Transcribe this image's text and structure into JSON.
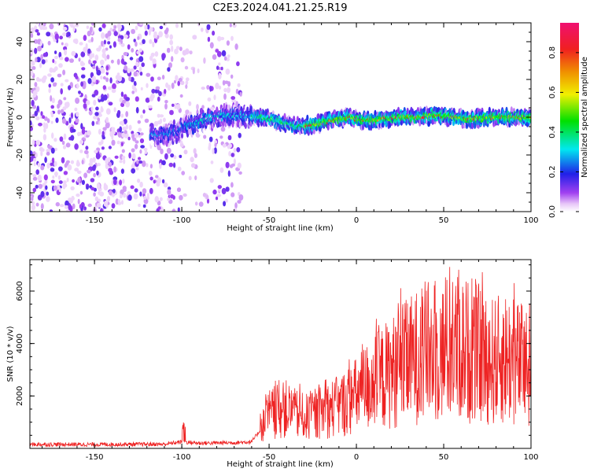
{
  "figure": {
    "title": "C2E3.2024.041.21.25.R19"
  },
  "chart_data": [
    {
      "type": "heatmap",
      "xlabel": "Height of straight line (km)",
      "ylabel": "Frequency (Hz)",
      "xlim": [
        -187,
        100
      ],
      "ylim": [
        -50,
        50
      ],
      "xticks": [
        -150,
        -100,
        -50,
        0,
        50,
        100
      ],
      "yticks": [
        -40,
        -20,
        0,
        20,
        40
      ],
      "xtick_labels": [
        "-150",
        "-100",
        "-50",
        "0",
        "50",
        "100"
      ],
      "ytick_labels": [
        "-40",
        "-20",
        "0",
        "20",
        "40"
      ],
      "ridge": {
        "description_points_x": [
          -115,
          -105,
          -95,
          -85,
          -75,
          -65,
          -55,
          -45,
          -35,
          -25,
          -15,
          -5,
          5,
          15,
          25,
          35,
          45,
          55,
          65,
          75,
          85,
          95,
          100
        ],
        "description_points_y": [
          -10,
          -8,
          -4,
          -1,
          1,
          1,
          0,
          -2,
          -5,
          -4,
          -2,
          0,
          -2,
          -1,
          0,
          0,
          1,
          0,
          -1,
          0,
          0,
          0,
          0
        ],
        "peak_amplitude_from_x": -30,
        "scatter_region_x": [
          -187,
          -66
        ]
      },
      "colorbar": {
        "label": "Normalized spectral amplitude",
        "range": [
          0,
          0.95
        ],
        "ticks": [
          0.0,
          0.2,
          0.4,
          0.6,
          0.8
        ],
        "tick_labels": [
          "0.0",
          "0.2",
          "0.4",
          "0.6",
          "0.8"
        ]
      }
    },
    {
      "type": "line",
      "xlabel": "Height of straight line (km)",
      "ylabel": "SNR (10 * v/v)",
      "xlim": [
        -187,
        100
      ],
      "ylim": [
        0,
        7200
      ],
      "xticks": [
        -150,
        -100,
        -50,
        0,
        50,
        100
      ],
      "yticks": [
        2000,
        4000,
        6000
      ],
      "xtick_labels": [
        "-150",
        "-100",
        "-50",
        "0",
        "50",
        "100"
      ],
      "ytick_labels": [
        "2000",
        "4000",
        "6000"
      ],
      "color": "#ee2222",
      "series": [
        {
          "name": "SNR",
          "x": [
            -187,
            -150,
            -110,
            -100,
            -90,
            -70,
            -60,
            -55,
            -50,
            -45,
            -40,
            -35,
            -30,
            -25,
            -20,
            -15,
            -10,
            -5,
            0,
            5,
            10,
            15,
            20,
            25,
            30,
            35,
            40,
            45,
            50,
            55,
            60,
            65,
            70,
            75,
            80,
            85,
            90,
            95,
            100
          ],
          "values": [
            150,
            150,
            160,
            250,
            200,
            220,
            250,
            700,
            1300,
            1400,
            1500,
            1300,
            1200,
            1200,
            1400,
            1500,
            1600,
            1800,
            2000,
            2300,
            2500,
            2700,
            2900,
            3100,
            3300,
            3500,
            3700,
            3600,
            3700,
            3900,
            3800,
            3700,
            3600,
            3400,
            3300,
            3500,
            3300,
            3200,
            3000
          ]
        }
      ]
    }
  ]
}
